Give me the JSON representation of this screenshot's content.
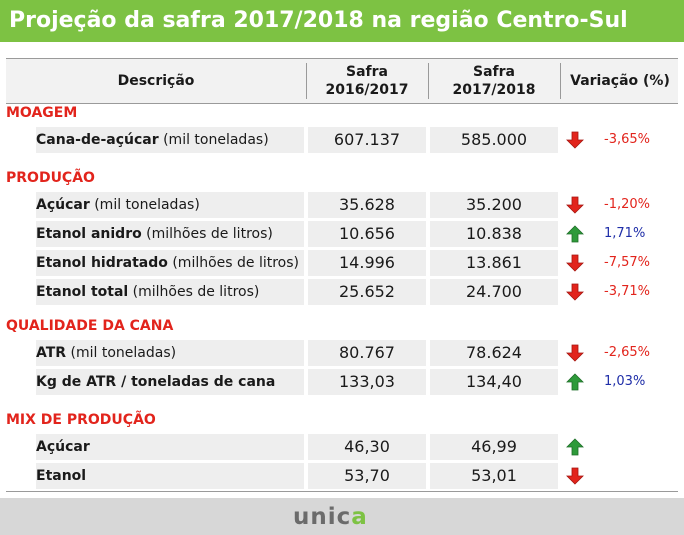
{
  "title": "Projeção da safra 2017/2018 na região Centro-Sul",
  "header": {
    "descricao": "Descrição",
    "safra_a_line1": "Safra",
    "safra_a_line2": "2016/2017",
    "safra_b_line1": "Safra",
    "safra_b_line2": "2017/2018",
    "variacao": "Variação (%)"
  },
  "sections": [
    {
      "title": "MOAGEM",
      "rows": [
        {
          "label": "Cana-de-açúcar",
          "unit": " (mil toneladas)",
          "a": "607.137",
          "b": "585.000",
          "trend": "down",
          "pct": "-3,65%"
        }
      ]
    },
    {
      "title": "PRODUÇÃO",
      "rows": [
        {
          "label": "Açúcar",
          "unit": " (mil toneladas)",
          "a": "35.628",
          "b": "35.200",
          "trend": "down",
          "pct": "-1,20%"
        },
        {
          "label": "Etanol anidro",
          "unit": " (milhões de litros)",
          "a": "10.656",
          "b": "10.838",
          "trend": "up",
          "pct": "1,71%"
        },
        {
          "label": "Etanol hidratado",
          "unit": " (milhões de litros)",
          "a": "14.996",
          "b": "13.861",
          "trend": "down",
          "pct": "-7,57%"
        },
        {
          "label": "Etanol total",
          "unit": " (milhões de litros)",
          "a": "25.652",
          "b": "24.700",
          "trend": "down",
          "pct": "-3,71%"
        }
      ]
    },
    {
      "title": "QUALIDADE DA CANA",
      "rows": [
        {
          "label": "ATR",
          "unit": " (mil toneladas)",
          "a": "80.767",
          "b": "78.624",
          "trend": "down",
          "pct": "-2,65%"
        },
        {
          "label": "Kg de ATR / toneladas de cana",
          "unit": "",
          "a": "133,03",
          "b": "134,40",
          "trend": "up",
          "pct": "1,03%"
        }
      ]
    },
    {
      "title": "MIX DE PRODUÇÃO",
      "rows": [
        {
          "label": "Açúcar",
          "unit": "",
          "a": "46,30",
          "b": "46,99",
          "trend": "up",
          "pct": ""
        },
        {
          "label": "Etanol",
          "unit": "",
          "a": "53,70",
          "b": "53,01",
          "trend": "down",
          "pct": ""
        }
      ]
    }
  ],
  "logo": {
    "text_main": "unic",
    "text_accent": "a"
  },
  "colors": {
    "title_bg": "#7dc243",
    "section": "#e2241c",
    "up_arrow": "#2e9a3a",
    "down_arrow": "#e2241c",
    "negative": "#e2241c",
    "positive": "#1f2ea8"
  }
}
